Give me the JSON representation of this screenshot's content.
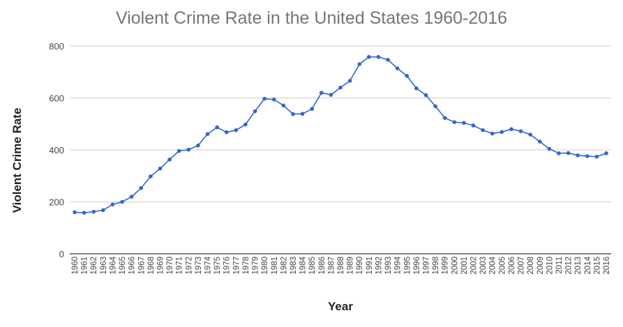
{
  "chart_data": {
    "type": "line",
    "title": "Violent Crime Rate in the United States 1960-2016",
    "xlabel": "Year",
    "ylabel": "Violent Crime Rate",
    "ylim": [
      0,
      800
    ],
    "yticks": [
      0,
      200,
      400,
      600,
      800
    ],
    "grid": true,
    "legend": "none",
    "colors": {
      "line": "#3366cc",
      "grid": "#cccccc",
      "axis": "#333333"
    },
    "x": [
      "1960",
      "1961",
      "1962",
      "1963",
      "1964",
      "1965",
      "1966",
      "1967",
      "1968",
      "1969",
      "1970",
      "1971",
      "1972",
      "1973",
      "1974",
      "1975",
      "1976",
      "1977",
      "1978",
      "1979",
      "1980",
      "1981",
      "1982",
      "1983",
      "1984",
      "1985",
      "1986",
      "1987",
      "1988",
      "1989",
      "1990",
      "1991",
      "1992",
      "1993",
      "1994",
      "1995",
      "1996",
      "1997",
      "1998",
      "1999",
      "2000",
      "2001",
      "2002",
      "2003",
      "2004",
      "2005",
      "2006",
      "2007",
      "2008",
      "2009",
      "2010",
      "2011",
      "2012",
      "2013",
      "2014",
      "2015",
      "2016"
    ],
    "series": [
      {
        "values": [
          160,
          158,
          162,
          168,
          190,
          200,
          220,
          253,
          298,
          328,
          363,
          396,
          401,
          417,
          461,
          487,
          468,
          476,
          498,
          549,
          597,
          594,
          571,
          538,
          539,
          558,
          620,
          612,
          640,
          666,
          730,
          758,
          758,
          747,
          714,
          685,
          637,
          611,
          568,
          523,
          507,
          504,
          494,
          476,
          463,
          469,
          480,
          472,
          459,
          432,
          404,
          387,
          388,
          379,
          376,
          374,
          387
        ]
      }
    ]
  }
}
